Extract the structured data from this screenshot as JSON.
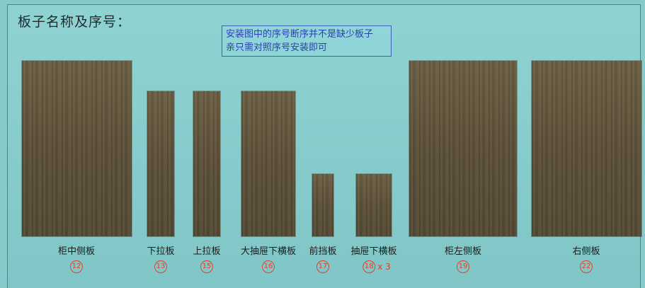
{
  "title": "板子名称及序号：",
  "note": {
    "line1": "安装图中的序号断序并不是缺少板子",
    "line2": "亲只需对照序号安装即可"
  },
  "panels": [
    {
      "label": "柜中侧板",
      "number": "12",
      "multiplier": ""
    },
    {
      "label": "下拉板",
      "number": "13",
      "multiplier": ""
    },
    {
      "label": "上拉板",
      "number": "15",
      "multiplier": ""
    },
    {
      "label": "大抽屉下横板",
      "number": "16",
      "multiplier": ""
    },
    {
      "label": "前挡板",
      "number": "17",
      "multiplier": ""
    },
    {
      "label": "抽屉下横板",
      "number": "18",
      "multiplier": "x 3"
    },
    {
      "label": "柜左侧板",
      "number": "19",
      "multiplier": ""
    },
    {
      "label": "右侧板",
      "number": "22",
      "multiplier": ""
    }
  ]
}
